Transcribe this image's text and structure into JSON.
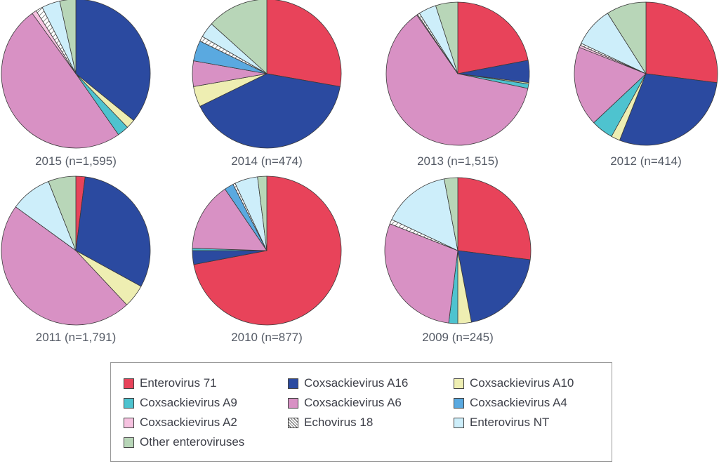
{
  "chart_data": {
    "type": "pie",
    "categories": [
      "Enterovirus 71",
      "Coxsackievirus A16",
      "Coxsackievirus A10",
      "Coxsackievirus A9",
      "Coxsackievirus A6",
      "Coxsackievirus A4",
      "Coxsackievirus A2",
      "Echovirus 18",
      "Enterovirus NT",
      "Other enteroviruses"
    ],
    "colors": [
      "#e8435a",
      "#2b4aa0",
      "#eeeeb2",
      "#4ec3cf",
      "#d891c4",
      "#5aa9e0",
      "#f6c2e0",
      "#ffffff",
      "#cdeefa",
      "#b8d6b8"
    ],
    "legend_labels": [
      "Enterovirus 71",
      "Coxsackievirus A16",
      "Coxsackievirus A10",
      "Coxsackievirus A9",
      "Coxsackievirus A6",
      "Coxsackievirus A4",
      "Coxsackievirus A2",
      "Echovirus 18",
      "Enterovirus NT",
      "Other enteroviruses"
    ],
    "pies": [
      {
        "caption": "2015 (n=1,595)",
        "values": [
          0,
          36,
          2,
          2.5,
          50,
          0,
          1,
          1.5,
          4,
          3.5
        ]
      },
      {
        "caption": "2014 (n=474)",
        "values": [
          25,
          36,
          4,
          0,
          5,
          4,
          0,
          1,
          3,
          12
        ]
      },
      {
        "caption": "2013 (n=1,515)",
        "values": [
          22,
          5,
          0.3,
          1,
          62,
          0,
          0.2,
          0.5,
          4,
          5
        ]
      },
      {
        "caption": "2012 (n=414)",
        "values": [
          27,
          29,
          2,
          5,
          18,
          0,
          0.5,
          0.5,
          9,
          9
        ]
      },
      {
        "caption": "2011 (n=1,791)",
        "values": [
          2,
          31,
          5,
          0,
          47,
          0,
          0,
          0,
          9,
          6
        ]
      },
      {
        "caption": "2010 (n=877)",
        "values": [
          72,
          3,
          0,
          0.5,
          15,
          2,
          0,
          0.5,
          5,
          2
        ]
      },
      {
        "caption": "2009 (n=245)",
        "values": [
          27,
          20,
          3,
          2,
          29,
          0,
          0,
          1,
          15,
          3
        ]
      }
    ]
  }
}
